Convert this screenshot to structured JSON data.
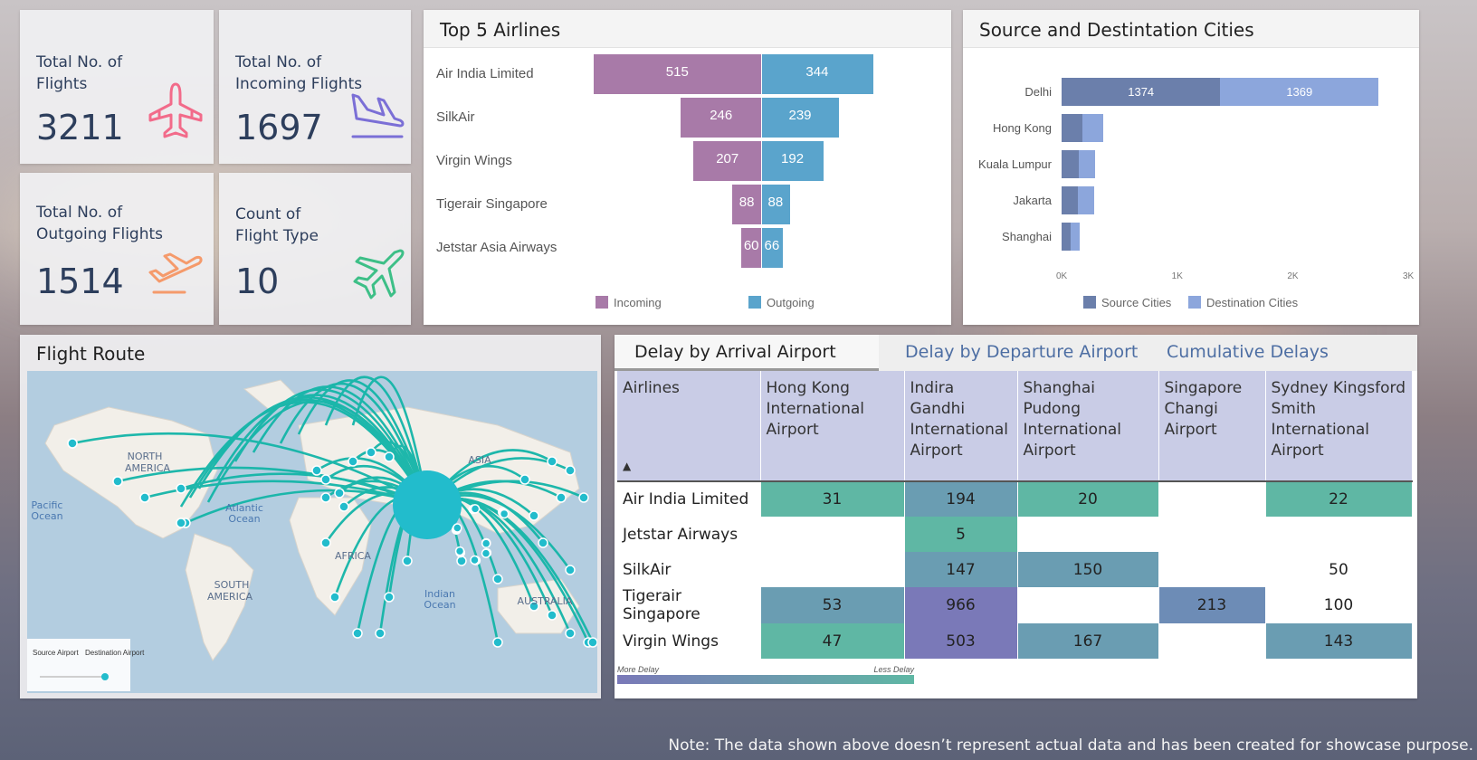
{
  "kpis": [
    {
      "title_line1": "Total No. of",
      "title_line2": "Flights",
      "value": "3211",
      "icon": "airplane-front-icon",
      "color": "#f26b8a"
    },
    {
      "title_line1": "Total No. of",
      "title_line2": "Incoming Flights",
      "value": "1697",
      "icon": "airplane-landing-icon",
      "color": "#7b6fd6"
    },
    {
      "title_line1": "Total No. of",
      "title_line2": "Outgoing Flights",
      "value": "1514",
      "icon": "airplane-takeoff-icon",
      "color": "#f59a6b"
    },
    {
      "title_line1": "Count of",
      "title_line2": "Flight Type",
      "value": "10",
      "icon": "airplane-angled-icon",
      "color": "#3dbf87"
    }
  ],
  "top_airlines": {
    "title": "Top 5 Airlines",
    "legend_incoming": "Incoming",
    "legend_outgoing": "Outgoing",
    "incoming_color": "#a87aa8",
    "outgoing_color": "#5aa4cc"
  },
  "cities": {
    "title": "Source and Destintation Cities",
    "legend_source": "Source Cities",
    "legend_destination": "Destination Cities",
    "source_color": "#6b7fab",
    "destination_color": "#8ca6dc",
    "ticks": [
      "0K",
      "1K",
      "2K",
      "3K"
    ]
  },
  "chart_data": [
    {
      "type": "bar",
      "title": "Top 5 Airlines",
      "categories": [
        "Air India Limited",
        "SilkAir",
        "Virgin Wings",
        "Tigerair Singapore",
        "Jetstar Asia Airways"
      ],
      "series": [
        {
          "name": "Incoming",
          "values": [
            515,
            246,
            207,
            88,
            60
          ]
        },
        {
          "name": "Outgoing",
          "values": [
            344,
            239,
            192,
            88,
            66
          ]
        }
      ],
      "legend": "bottom"
    },
    {
      "type": "bar",
      "title": "Source and Destintation Cities",
      "categories": [
        "Delhi",
        "Hong Kong",
        "Kuala Lumpur",
        "Jakarta",
        "Shanghai"
      ],
      "series": [
        {
          "name": "Source Cities",
          "values": [
            1374,
            180,
            150,
            140,
            80
          ]
        },
        {
          "name": "Destination Cities",
          "values": [
            1369,
            180,
            140,
            140,
            80
          ]
        }
      ],
      "xlim": [
        0,
        3000
      ],
      "legend": "bottom"
    }
  ],
  "map": {
    "title": "Flight Route",
    "labels": [
      "NORTH",
      "AMERICA",
      "Pacific",
      "Ocean",
      "Atlantic",
      "Ocean",
      "SOUTH",
      "AMERICA",
      "AFRICA",
      "ASIA",
      "Indian",
      "Ocean",
      "AUSTRALIA"
    ],
    "legend_source": "Source Airport",
    "legend_destination": "Destination Airport",
    "route_color": "#13b5a8"
  },
  "delay": {
    "tabs": [
      "Delay by Arrival Airport",
      "Delay by Departure Airport",
      "Cumulative Delays"
    ],
    "active_tab": "Delay by Arrival Airport",
    "columns": [
      "Airlines",
      "Hong Kong International Airport",
      "Indira Gandhi International Airport",
      "Shanghai Pudong International Airport",
      "Singapore Changi Airport",
      "Sydney Kingsford Smith International Airport"
    ],
    "rows": [
      {
        "airline": "Air India Limited",
        "values": [
          "31",
          "194",
          "20",
          "",
          "22"
        ]
      },
      {
        "airline": "Jetstar Airways",
        "values": [
          "",
          "5",
          "",
          "",
          ""
        ]
      },
      {
        "airline": "SilkAir",
        "values": [
          "",
          "147",
          "150",
          "",
          "50"
        ]
      },
      {
        "airline": "Tigerair Singapore",
        "values": [
          "53",
          "966",
          "",
          "213",
          "100"
        ]
      },
      {
        "airline": "Virgin Wings",
        "values": [
          "47",
          "503",
          "167",
          "",
          "143"
        ]
      }
    ],
    "scale_more": "More Delay",
    "scale_less": "Less Delay",
    "more_color": "#7a79b8",
    "less_color": "#5fb7a4"
  },
  "note": "Note: The data shown above doesn’t represent actual data and has been created for showcase purpose."
}
